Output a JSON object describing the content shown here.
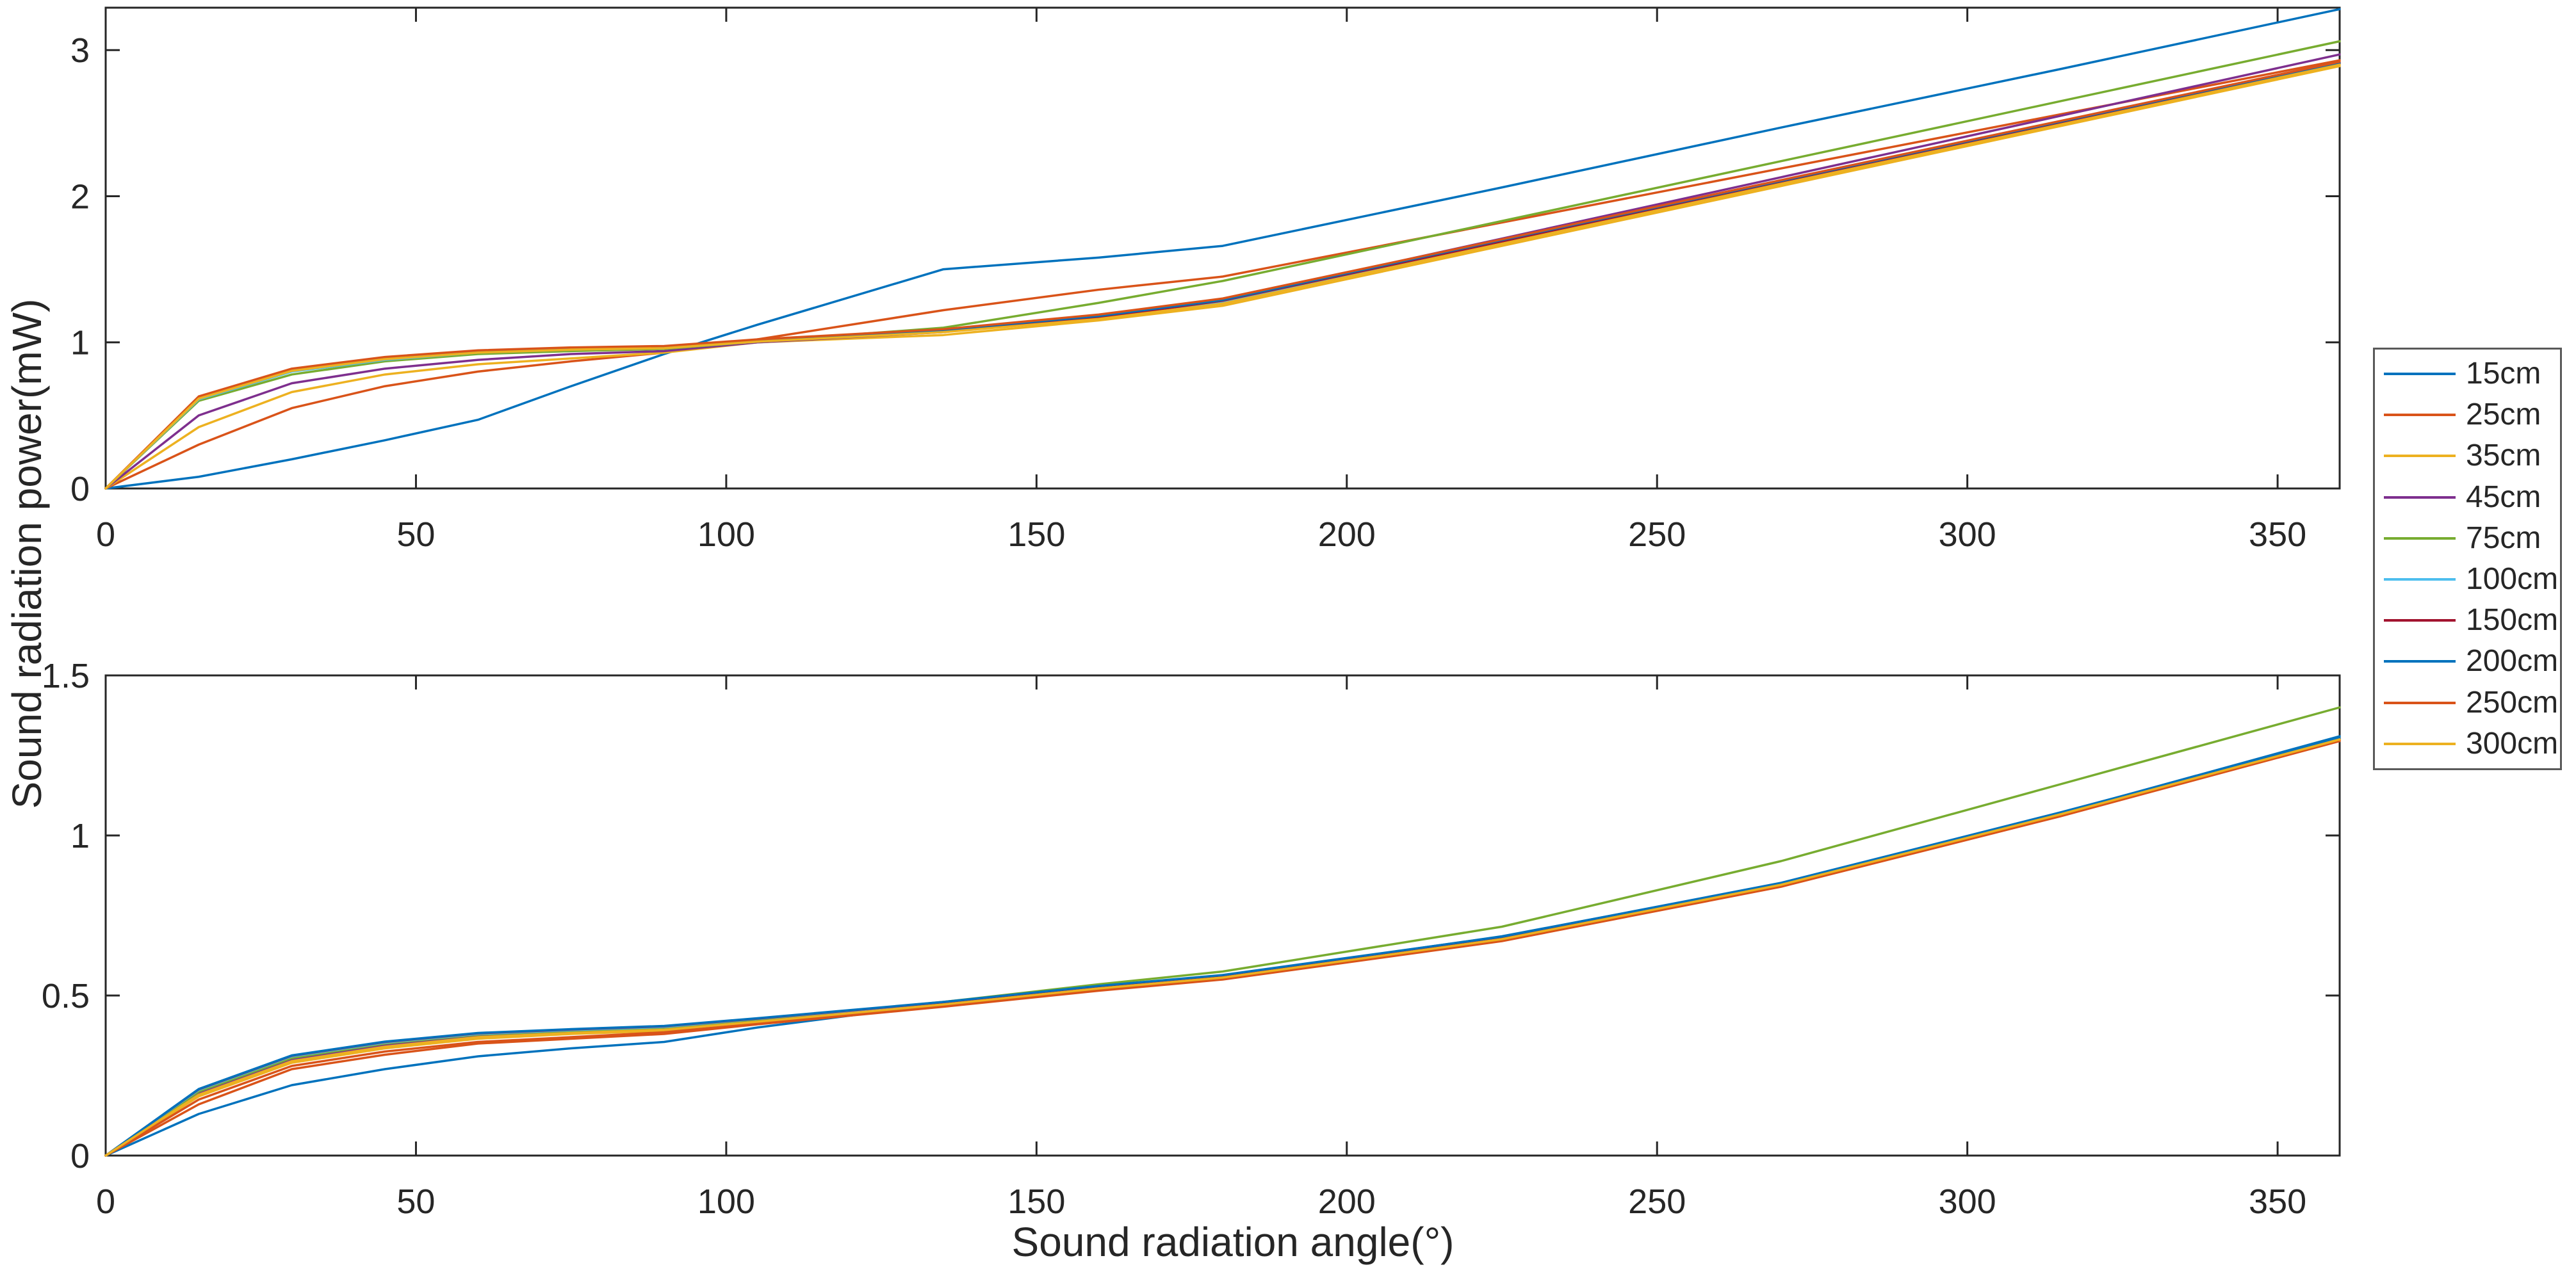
{
  "figure": {
    "ylabel": "Sound radiation power(mW)",
    "xlabel": "Sound radiation angle(°)",
    "background": "#ffffff",
    "axis_color": "#262626"
  },
  "legend": {
    "position": "right-outside",
    "entries": [
      {
        "label": "15cm",
        "color": "#0072BD"
      },
      {
        "label": "25cm",
        "color": "#D95319"
      },
      {
        "label": "35cm",
        "color": "#EDB120"
      },
      {
        "label": "45cm",
        "color": "#7E2F8E"
      },
      {
        "label": "75cm",
        "color": "#77AC30"
      },
      {
        "label": "100cm",
        "color": "#4DBEEE"
      },
      {
        "label": "150cm",
        "color": "#A2142F"
      },
      {
        "label": "200cm",
        "color": "#0072BD"
      },
      {
        "label": "250cm",
        "color": "#D95319"
      },
      {
        "label": "300cm",
        "color": "#EDB120"
      }
    ]
  },
  "chart_data": [
    {
      "type": "line",
      "title": "",
      "xlabel": "Sound radiation angle(°)",
      "ylabel": "Sound radiation power(mW)",
      "xlim": [
        0,
        360
      ],
      "ylim": [
        0,
        3.29
      ],
      "xticks": [
        0,
        50,
        100,
        150,
        200,
        250,
        300,
        350
      ],
      "yticks": [
        0,
        1,
        2,
        3
      ],
      "grid": false,
      "legend_position": "right-outside",
      "x": [
        0,
        15,
        30,
        45,
        60,
        75,
        90,
        105,
        135,
        160,
        180,
        225,
        270,
        315,
        360
      ],
      "series": [
        {
          "name": "15cm",
          "color": "#0072BD",
          "values": [
            0,
            0.08,
            0.2,
            0.33,
            0.47,
            0.7,
            0.92,
            1.12,
            1.5,
            1.58,
            1.66,
            2.06,
            2.47,
            2.87,
            3.28
          ]
        },
        {
          "name": "25cm",
          "color": "#D95319",
          "values": [
            0,
            0.3,
            0.55,
            0.7,
            0.8,
            0.87,
            0.93,
            1.02,
            1.22,
            1.36,
            1.45,
            1.82,
            2.19,
            2.56,
            2.93
          ]
        },
        {
          "name": "35cm",
          "color": "#EDB120",
          "values": [
            0,
            0.42,
            0.66,
            0.78,
            0.85,
            0.89,
            0.93,
            1.0,
            1.05,
            1.15,
            1.25,
            1.66,
            2.07,
            2.48,
            2.89
          ]
        },
        {
          "name": "45cm",
          "color": "#7E2F8E",
          "values": [
            0,
            0.5,
            0.72,
            0.82,
            0.88,
            0.92,
            0.94,
            1.0,
            1.07,
            1.18,
            1.29,
            1.71,
            2.13,
            2.55,
            2.97
          ]
        },
        {
          "name": "75cm",
          "color": "#77AC30",
          "values": [
            0,
            0.6,
            0.78,
            0.87,
            0.92,
            0.94,
            0.955,
            1.005,
            1.1,
            1.27,
            1.42,
            1.83,
            2.24,
            2.65,
            3.06
          ]
        },
        {
          "name": "100cm",
          "color": "#4DBEEE",
          "values": [
            0,
            0.61,
            0.8,
            0.88,
            0.93,
            0.95,
            0.96,
            1.005,
            1.075,
            1.165,
            1.27,
            1.68,
            2.09,
            2.5,
            2.905
          ]
        },
        {
          "name": "150cm",
          "color": "#A2142F",
          "values": [
            0,
            0.62,
            0.81,
            0.89,
            0.935,
            0.955,
            0.965,
            1.01,
            1.08,
            1.17,
            1.285,
            1.69,
            2.1,
            2.505,
            2.91
          ]
        },
        {
          "name": "200cm",
          "color": "#0072BD",
          "values": [
            0,
            0.625,
            0.815,
            0.895,
            0.94,
            0.96,
            0.97,
            1.015,
            1.085,
            1.18,
            1.29,
            1.7,
            2.105,
            2.51,
            2.915
          ]
        },
        {
          "name": "250cm",
          "color": "#D95319",
          "values": [
            0,
            0.63,
            0.82,
            0.9,
            0.945,
            0.965,
            0.975,
            1.02,
            1.09,
            1.19,
            1.3,
            1.705,
            2.11,
            2.515,
            2.92
          ]
        },
        {
          "name": "300cm",
          "color": "#EDB120",
          "values": [
            0,
            0.615,
            0.805,
            0.885,
            0.93,
            0.95,
            0.96,
            1.005,
            1.07,
            1.16,
            1.265,
            1.675,
            2.085,
            2.49,
            2.9
          ]
        }
      ]
    },
    {
      "type": "line",
      "title": "",
      "xlabel": "Sound radiation angle(°)",
      "ylabel": "Sound radiation power(mW)",
      "xlim": [
        0,
        360
      ],
      "ylim": [
        0,
        1.5
      ],
      "xticks": [
        0,
        50,
        100,
        150,
        200,
        250,
        300,
        350
      ],
      "yticks": [
        0,
        0.5,
        1,
        1.5
      ],
      "grid": false,
      "legend_position": "right-outside",
      "x": [
        0,
        15,
        30,
        45,
        60,
        75,
        90,
        105,
        135,
        160,
        180,
        225,
        270,
        315,
        360
      ],
      "series": [
        {
          "name": "15cm",
          "color": "#0072BD",
          "values": [
            0,
            0.13,
            0.22,
            0.27,
            0.31,
            0.335,
            0.355,
            0.4,
            0.475,
            0.525,
            0.56,
            0.685,
            0.85,
            1.07,
            1.31
          ]
        },
        {
          "name": "25cm",
          "color": "#D95319",
          "values": [
            0,
            0.16,
            0.27,
            0.315,
            0.35,
            0.365,
            0.38,
            0.41,
            0.465,
            0.515,
            0.55,
            0.67,
            0.84,
            1.06,
            1.295
          ]
        },
        {
          "name": "35cm",
          "color": "#EDB120",
          "values": [
            0,
            0.185,
            0.29,
            0.335,
            0.365,
            0.38,
            0.39,
            0.415,
            0.47,
            0.52,
            0.555,
            0.675,
            0.845,
            1.065,
            1.3
          ]
        },
        {
          "name": "45cm",
          "color": "#7E2F8E",
          "values": [
            0,
            0.195,
            0.3,
            0.345,
            0.372,
            0.385,
            0.395,
            0.42,
            0.472,
            0.522,
            0.558,
            0.678,
            0.848,
            1.068,
            1.3
          ]
        },
        {
          "name": "75cm",
          "color": "#77AC30",
          "values": [
            0,
            0.2,
            0.305,
            0.35,
            0.378,
            0.39,
            0.4,
            0.425,
            0.48,
            0.535,
            0.575,
            0.715,
            0.92,
            1.16,
            1.4
          ]
        },
        {
          "name": "100cm",
          "color": "#4DBEEE",
          "values": [
            0,
            0.205,
            0.31,
            0.353,
            0.38,
            0.392,
            0.402,
            0.427,
            0.478,
            0.528,
            0.562,
            0.682,
            0.85,
            1.07,
            1.3
          ]
        },
        {
          "name": "150cm",
          "color": "#A2142F",
          "values": [
            0,
            0.207,
            0.312,
            0.355,
            0.382,
            0.394,
            0.404,
            0.428,
            0.479,
            0.529,
            0.563,
            0.683,
            0.851,
            1.071,
            1.302
          ]
        },
        {
          "name": "200cm",
          "color": "#0072BD",
          "values": [
            0,
            0.208,
            0.313,
            0.356,
            0.383,
            0.395,
            0.405,
            0.429,
            0.48,
            0.53,
            0.564,
            0.684,
            0.852,
            1.072,
            1.303
          ]
        },
        {
          "name": "250cm",
          "color": "#D95319",
          "values": [
            0,
            0.175,
            0.28,
            0.325,
            0.355,
            0.37,
            0.385,
            0.412,
            0.468,
            0.518,
            0.552,
            0.672,
            0.842,
            1.062,
            1.297
          ]
        },
        {
          "name": "300cm",
          "color": "#EDB120",
          "values": [
            0,
            0.19,
            0.295,
            0.34,
            0.37,
            0.383,
            0.393,
            0.418,
            0.472,
            0.522,
            0.556,
            0.676,
            0.846,
            1.066,
            1.3
          ]
        }
      ]
    }
  ]
}
